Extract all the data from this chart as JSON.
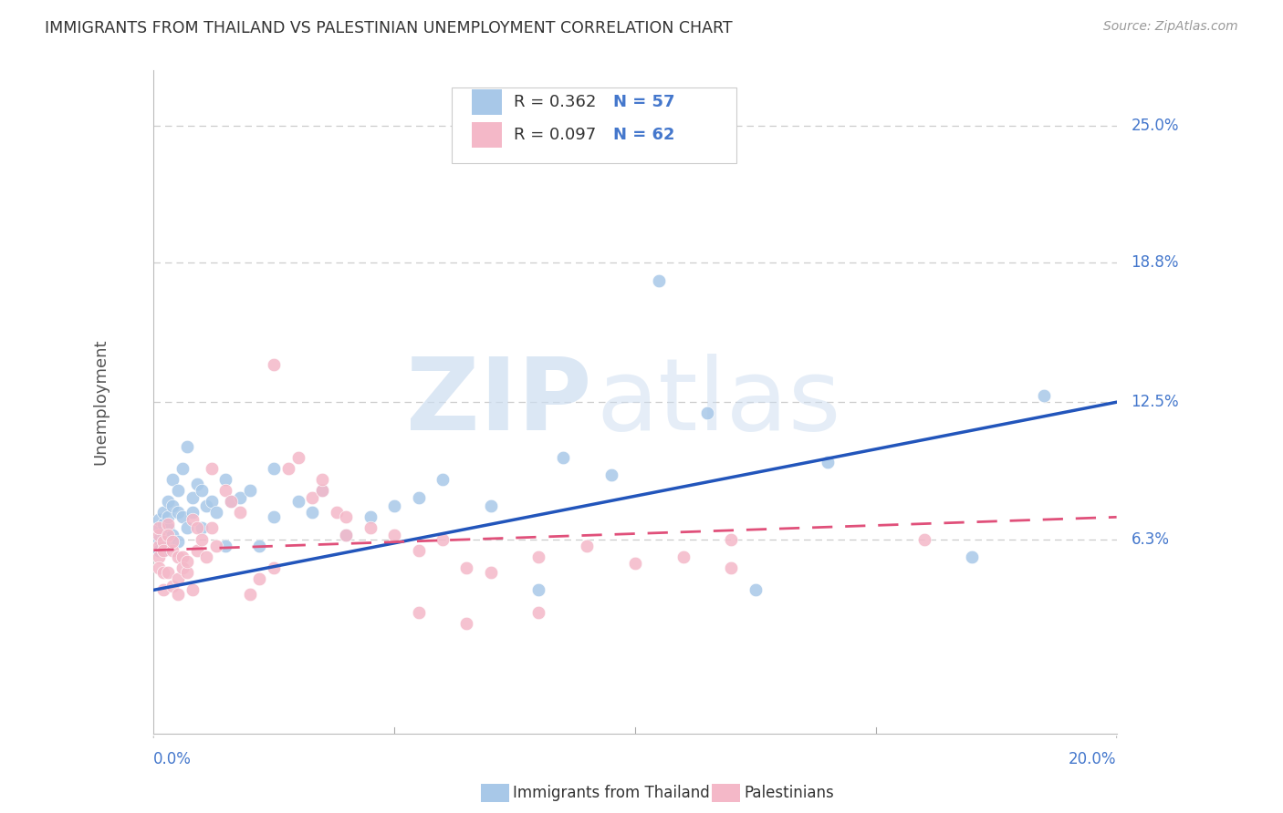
{
  "title": "IMMIGRANTS FROM THAILAND VS PALESTINIAN UNEMPLOYMENT CORRELATION CHART",
  "source": "Source: ZipAtlas.com",
  "ylabel": "Unemployment",
  "ytick_labels": [
    "6.3%",
    "12.5%",
    "18.8%",
    "25.0%"
  ],
  "ytick_values": [
    0.063,
    0.125,
    0.188,
    0.25
  ],
  "xtick_labels": [
    "0.0%",
    "20.0%"
  ],
  "xtick_values": [
    0.0,
    0.2
  ],
  "xmin": 0.0,
  "xmax": 0.2,
  "ymin": -0.025,
  "ymax": 0.275,
  "legend_r1": "R = 0.362",
  "legend_n1": "N = 57",
  "legend_r2": "R = 0.097",
  "legend_n2": "N = 62",
  "legend_label1": "Immigrants from Thailand",
  "legend_label2": "Palestinians",
  "blue_color": "#a8c8e8",
  "pink_color": "#f4b8c8",
  "blue_line_color": "#2255bb",
  "pink_line_color": "#e0507a",
  "blue_scatter_x": [
    0.001,
    0.001,
    0.001,
    0.001,
    0.002,
    0.002,
    0.002,
    0.002,
    0.002,
    0.003,
    0.003,
    0.003,
    0.003,
    0.004,
    0.004,
    0.004,
    0.005,
    0.005,
    0.005,
    0.006,
    0.006,
    0.007,
    0.007,
    0.008,
    0.008,
    0.009,
    0.01,
    0.01,
    0.011,
    0.012,
    0.013,
    0.015,
    0.015,
    0.016,
    0.018,
    0.02,
    0.022,
    0.025,
    0.025,
    0.03,
    0.033,
    0.035,
    0.04,
    0.045,
    0.05,
    0.055,
    0.06,
    0.07,
    0.08,
    0.085,
    0.095,
    0.105,
    0.115,
    0.125,
    0.14,
    0.17,
    0.185
  ],
  "blue_scatter_y": [
    0.063,
    0.068,
    0.058,
    0.072,
    0.062,
    0.065,
    0.075,
    0.07,
    0.058,
    0.068,
    0.08,
    0.073,
    0.06,
    0.065,
    0.078,
    0.09,
    0.075,
    0.085,
    0.062,
    0.095,
    0.073,
    0.105,
    0.068,
    0.075,
    0.082,
    0.088,
    0.085,
    0.068,
    0.078,
    0.08,
    0.075,
    0.09,
    0.06,
    0.08,
    0.082,
    0.085,
    0.06,
    0.095,
    0.073,
    0.08,
    0.075,
    0.085,
    0.065,
    0.073,
    0.078,
    0.082,
    0.09,
    0.078,
    0.04,
    0.1,
    0.092,
    0.18,
    0.12,
    0.04,
    0.098,
    0.055,
    0.128
  ],
  "pink_scatter_x": [
    0.001,
    0.001,
    0.001,
    0.001,
    0.001,
    0.002,
    0.002,
    0.002,
    0.002,
    0.003,
    0.003,
    0.003,
    0.004,
    0.004,
    0.004,
    0.005,
    0.005,
    0.005,
    0.006,
    0.006,
    0.007,
    0.007,
    0.008,
    0.008,
    0.009,
    0.009,
    0.01,
    0.011,
    0.012,
    0.012,
    0.013,
    0.015,
    0.016,
    0.018,
    0.02,
    0.022,
    0.025,
    0.028,
    0.03,
    0.033,
    0.035,
    0.038,
    0.04,
    0.045,
    0.05,
    0.055,
    0.06,
    0.065,
    0.07,
    0.08,
    0.09,
    0.1,
    0.11,
    0.12,
    0.025,
    0.035,
    0.04,
    0.055,
    0.065,
    0.08,
    0.12,
    0.16
  ],
  "pink_scatter_y": [
    0.06,
    0.065,
    0.055,
    0.068,
    0.05,
    0.062,
    0.058,
    0.048,
    0.04,
    0.07,
    0.065,
    0.048,
    0.058,
    0.062,
    0.042,
    0.038,
    0.045,
    0.055,
    0.055,
    0.05,
    0.048,
    0.053,
    0.072,
    0.04,
    0.068,
    0.058,
    0.063,
    0.055,
    0.068,
    0.095,
    0.06,
    0.085,
    0.08,
    0.075,
    0.038,
    0.045,
    0.05,
    0.095,
    0.1,
    0.082,
    0.085,
    0.075,
    0.065,
    0.068,
    0.065,
    0.058,
    0.063,
    0.05,
    0.048,
    0.055,
    0.06,
    0.052,
    0.055,
    0.05,
    0.142,
    0.09,
    0.073,
    0.03,
    0.025,
    0.03,
    0.063,
    0.063
  ],
  "blue_line_x": [
    0.0,
    0.2
  ],
  "blue_line_y": [
    0.04,
    0.125
  ],
  "pink_line_x": [
    0.0,
    0.2
  ],
  "pink_line_y": [
    0.058,
    0.073
  ],
  "watermark_zip": "ZIP",
  "watermark_atlas": "atlas",
  "background_color": "#ffffff",
  "grid_color": "#cccccc",
  "title_color": "#333333",
  "axis_label_color": "#4477cc"
}
